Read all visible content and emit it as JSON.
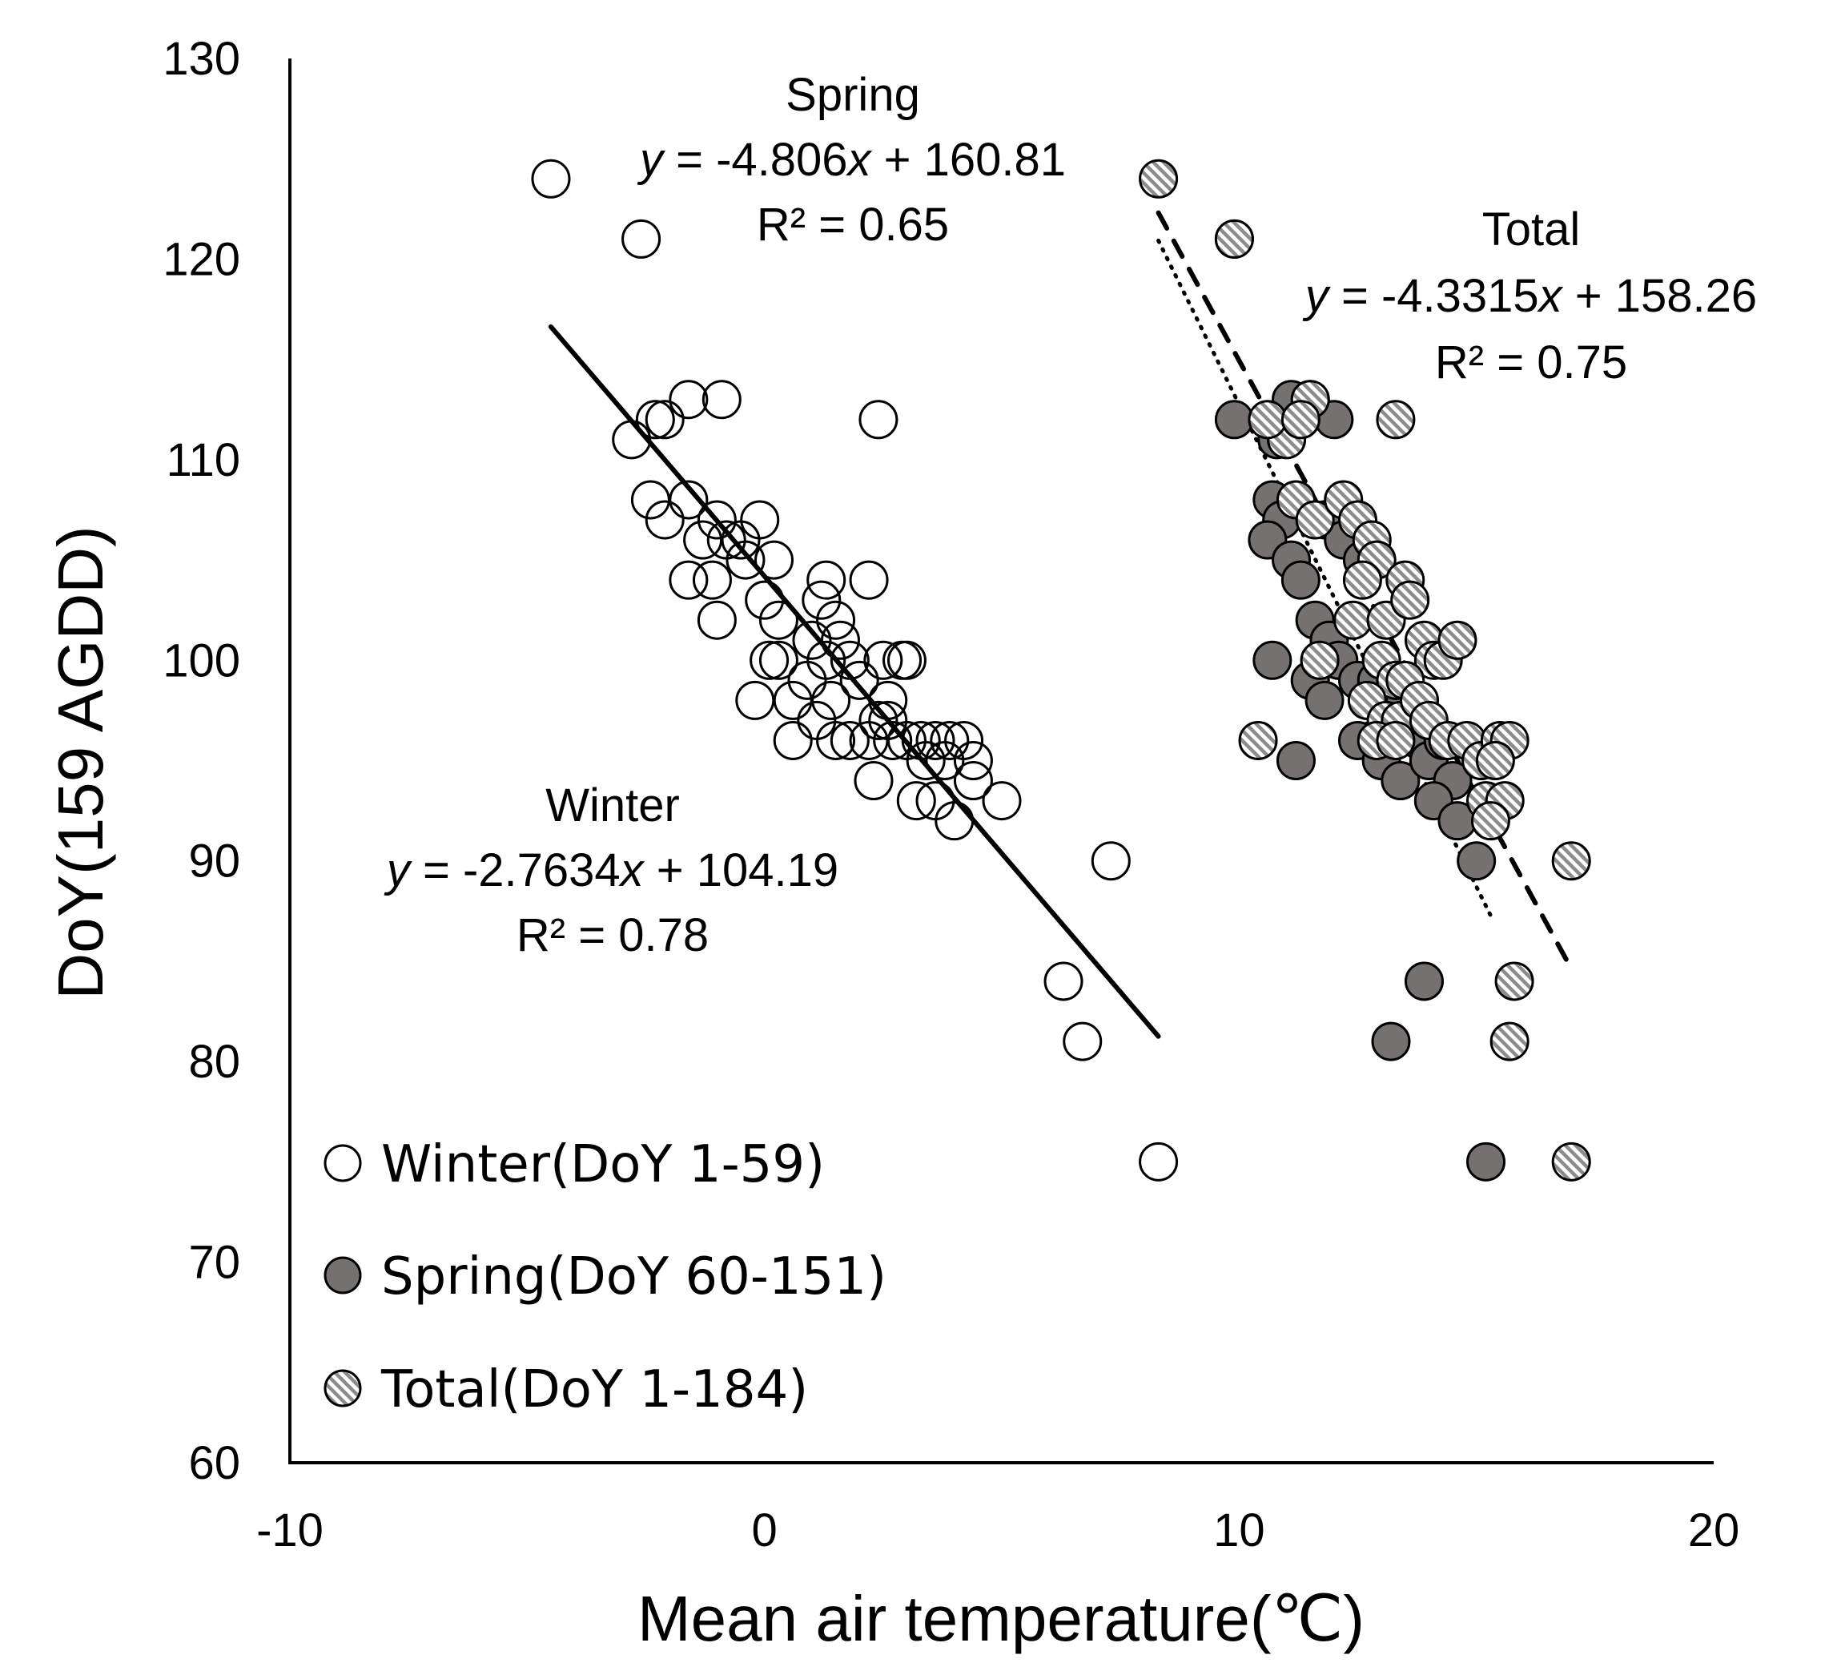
{
  "chart_data": {
    "type": "scatter",
    "xlabel": "Mean air temperature(℃)",
    "ylabel": "DoY(159 AGDD)",
    "xlim": [
      -10,
      20
    ],
    "ylim": [
      60,
      130
    ],
    "xticks": [
      "-10",
      "0",
      "10",
      "20"
    ],
    "yticks": [
      "60",
      "70",
      "80",
      "90",
      "100",
      "110",
      "120",
      "130"
    ],
    "legend_position": "bottom-left",
    "colors": {
      "winter_fill": "#ffffff",
      "spring_fill": "#767171",
      "total_stripe_a": "#ffffff",
      "total_stripe_b": "#8c8c8c",
      "outline": "#000000"
    },
    "series": [
      {
        "name": "Winter",
        "legend": "Winter(DoY 1-59)",
        "marker": "open-circle",
        "points": [
          [
            -4.5,
            124
          ],
          [
            -2.6,
            121
          ],
          [
            -2.8,
            111
          ],
          [
            -2.3,
            112
          ],
          [
            -2.1,
            112
          ],
          [
            -1.6,
            113
          ],
          [
            -0.9,
            113
          ],
          [
            -2.4,
            108
          ],
          [
            -2.1,
            107
          ],
          [
            -1.6,
            108
          ],
          [
            -1.3,
            106
          ],
          [
            -1.0,
            107
          ],
          [
            -0.8,
            106
          ],
          [
            -0.5,
            106
          ],
          [
            -0.1,
            107
          ],
          [
            -1.6,
            104
          ],
          [
            -1.1,
            104
          ],
          [
            -1.0,
            102
          ],
          [
            -0.4,
            105
          ],
          [
            0.2,
            105
          ],
          [
            0.0,
            103
          ],
          [
            0.3,
            102
          ],
          [
            0.1,
            100
          ],
          [
            0.3,
            100
          ],
          [
            -0.2,
            98
          ],
          [
            0.6,
            98
          ],
          [
            0.9,
            99
          ],
          [
            1.0,
            101
          ],
          [
            1.2,
            103
          ],
          [
            1.3,
            104
          ],
          [
            1.5,
            102
          ],
          [
            1.3,
            100
          ],
          [
            1.6,
            101
          ],
          [
            1.8,
            100
          ],
          [
            2.0,
            99
          ],
          [
            2.2,
            104
          ],
          [
            2.5,
            100
          ],
          [
            2.9,
            100
          ],
          [
            3.0,
            100
          ],
          [
            2.6,
            98
          ],
          [
            2.4,
            97
          ],
          [
            1.4,
            98
          ],
          [
            1.1,
            97
          ],
          [
            0.6,
            96
          ],
          [
            1.5,
            96
          ],
          [
            1.8,
            96
          ],
          [
            2.2,
            96
          ],
          [
            2.6,
            97
          ],
          [
            3.0,
            96
          ],
          [
            3.3,
            96
          ],
          [
            3.6,
            96
          ],
          [
            3.9,
            96
          ],
          [
            4.2,
            96
          ],
          [
            3.4,
            95
          ],
          [
            3.8,
            95
          ],
          [
            4.4,
            95
          ],
          [
            2.7,
            96
          ],
          [
            2.3,
            94
          ],
          [
            3.2,
            93
          ],
          [
            3.6,
            93
          ],
          [
            4.0,
            92
          ],
          [
            4.4,
            94
          ],
          [
            5.0,
            93
          ],
          [
            7.3,
            90
          ],
          [
            6.3,
            84
          ],
          [
            6.7,
            81
          ],
          [
            8.3,
            75
          ],
          [
            2.4,
            112
          ]
        ]
      },
      {
        "name": "Spring",
        "legend": "Spring(DoY 60-151)",
        "marker": "filled-circle",
        "points": [
          [
            9.9,
            121
          ],
          [
            9.9,
            112
          ],
          [
            10.8,
            111
          ],
          [
            11.1,
            113
          ],
          [
            11.3,
            112
          ],
          [
            11.5,
            113
          ],
          [
            12.0,
            112
          ],
          [
            10.7,
            108
          ],
          [
            10.9,
            107
          ],
          [
            10.6,
            106
          ],
          [
            11.1,
            105
          ],
          [
            11.3,
            104
          ],
          [
            11.8,
            107
          ],
          [
            12.2,
            106
          ],
          [
            12.6,
            105
          ],
          [
            10.7,
            100
          ],
          [
            11.6,
            102
          ],
          [
            11.9,
            101
          ],
          [
            12.1,
            100
          ],
          [
            11.5,
            99
          ],
          [
            11.8,
            98
          ],
          [
            12.5,
            99
          ],
          [
            12.9,
            99
          ],
          [
            13.2,
            97
          ],
          [
            13.5,
            98
          ],
          [
            13.8,
            96
          ],
          [
            12.8,
            96
          ],
          [
            12.5,
            96
          ],
          [
            13.0,
            95
          ],
          [
            13.4,
            94
          ],
          [
            14.0,
            95
          ],
          [
            14.3,
            96
          ],
          [
            14.5,
            94
          ],
          [
            14.1,
            93
          ],
          [
            14.6,
            92
          ],
          [
            15.0,
            90
          ],
          [
            11.2,
            95
          ],
          [
            13.9,
            84
          ],
          [
            13.2,
            81
          ],
          [
            15.2,
            75
          ]
        ]
      },
      {
        "name": "Total",
        "legend": "Total(DoY 1-184)",
        "marker": "hatched-circle",
        "points": [
          [
            8.3,
            124
          ],
          [
            9.9,
            121
          ],
          [
            13.3,
            112
          ],
          [
            11.5,
            113
          ],
          [
            11.0,
            111
          ],
          [
            10.6,
            112
          ],
          [
            11.3,
            112
          ],
          [
            11.2,
            108
          ],
          [
            11.6,
            107
          ],
          [
            12.2,
            108
          ],
          [
            12.5,
            107
          ],
          [
            12.8,
            106
          ],
          [
            12.9,
            105
          ],
          [
            12.6,
            104
          ],
          [
            12.4,
            102
          ],
          [
            13.1,
            102
          ],
          [
            13.5,
            104
          ],
          [
            13.6,
            103
          ],
          [
            13.9,
            101
          ],
          [
            14.1,
            100
          ],
          [
            14.3,
            100
          ],
          [
            14.6,
            101
          ],
          [
            13.0,
            100
          ],
          [
            13.3,
            99
          ],
          [
            13.5,
            99
          ],
          [
            12.7,
            98
          ],
          [
            13.1,
            97
          ],
          [
            13.4,
            97
          ],
          [
            13.8,
            98
          ],
          [
            14.0,
            97
          ],
          [
            12.9,
            96
          ],
          [
            13.3,
            96
          ],
          [
            14.4,
            96
          ],
          [
            14.8,
            96
          ],
          [
            15.1,
            95
          ],
          [
            15.5,
            96
          ],
          [
            15.7,
            96
          ],
          [
            15.4,
            95
          ],
          [
            15.2,
            93
          ],
          [
            15.6,
            93
          ],
          [
            15.3,
            92
          ],
          [
            11.7,
            100
          ],
          [
            10.4,
            96
          ],
          [
            17.0,
            90
          ],
          [
            15.8,
            84
          ],
          [
            15.7,
            81
          ],
          [
            17.0,
            75
          ]
        ]
      }
    ],
    "trendlines": [
      {
        "name": "Winter",
        "style": "solid",
        "slope": -2.7634,
        "intercept": 104.19,
        "x_range": [
          -4.5,
          8.3
        ]
      },
      {
        "name": "Spring",
        "style": "dotted",
        "slope": -4.806,
        "intercept": 160.81,
        "x_range": [
          8.3,
          15.3
        ]
      },
      {
        "name": "Total",
        "style": "dashed",
        "slope": -4.3315,
        "intercept": 158.26,
        "x_range": [
          8.3,
          16.9
        ]
      }
    ],
    "annotations": {
      "winter": {
        "title": "Winter",
        "eq_y": "y",
        "eq_rest": " = -2.7634",
        "eq_x": "x",
        "eq_tail": " + 104.19",
        "r2": "R² = 0.78"
      },
      "spring": {
        "title": "Spring",
        "eq_y": "y",
        "eq_rest": " = -4.806",
        "eq_x": "x",
        "eq_tail": " + 160.81",
        "r2": "R² = 0.65"
      },
      "total": {
        "title": "Total",
        "eq_y": "y",
        "eq_rest": " = -4.3315",
        "eq_x": "x",
        "eq_tail": " + 158.26",
        "r2": "R² = 0.75"
      }
    }
  }
}
